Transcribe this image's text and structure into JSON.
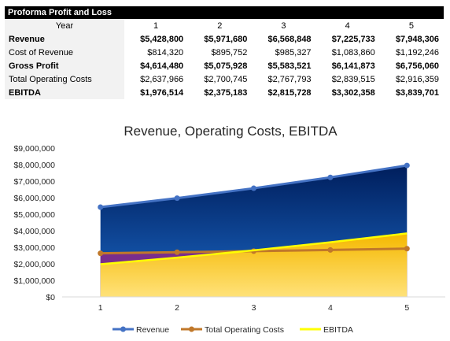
{
  "table": {
    "title": "Proforma Profit and Loss",
    "header_label": "Year",
    "years": [
      "1",
      "2",
      "3",
      "4",
      "5"
    ],
    "rows": [
      {
        "label": "Revenue",
        "bold": true,
        "values": [
          "$5,428,800",
          "$5,971,680",
          "$6,568,848",
          "$7,225,733",
          "$7,948,306"
        ]
      },
      {
        "label": "Cost of Revenue",
        "bold": false,
        "values": [
          "$814,320",
          "$895,752",
          "$985,327",
          "$1,083,860",
          "$1,192,246"
        ]
      },
      {
        "label": "Gross Profit",
        "bold": true,
        "values": [
          "$4,614,480",
          "$5,075,928",
          "$5,583,521",
          "$6,141,873",
          "$6,756,060"
        ]
      },
      {
        "label": "Total Operating Costs",
        "bold": false,
        "values": [
          "$2,637,966",
          "$2,700,745",
          "$2,767,793",
          "$2,839,515",
          "$2,916,359"
        ]
      },
      {
        "label": "EBITDA",
        "bold": true,
        "values": [
          "$1,976,514",
          "$2,375,183",
          "$2,815,728",
          "$3,302,358",
          "$3,839,701"
        ]
      }
    ]
  },
  "chart_data": {
    "type": "area",
    "title": "Revenue, Operating Costs, EBITDA",
    "x": [
      "1",
      "2",
      "3",
      "4",
      "5"
    ],
    "ylim": [
      0,
      9000000
    ],
    "yticks": [
      0,
      1000000,
      2000000,
      3000000,
      4000000,
      5000000,
      6000000,
      7000000,
      8000000,
      9000000
    ],
    "ytick_labels": [
      "$0",
      "$1,000,000",
      "$2,000,000",
      "$3,000,000",
      "$4,000,000",
      "$5,000,000",
      "$6,000,000",
      "$7,000,000",
      "$8,000,000",
      "$9,000,000"
    ],
    "legend_position": "bottom",
    "grid": false,
    "series": [
      {
        "name": "Revenue",
        "values": [
          5428800,
          5971680,
          6568848,
          7225733,
          7948306
        ],
        "line_color": "#4472c4",
        "marker": true
      },
      {
        "name": "Total Operating Costs",
        "values": [
          2637966,
          2700745,
          2767793,
          2839515,
          2916359
        ],
        "line_color": "#c0782a",
        "marker": true
      },
      {
        "name": "EBITDA",
        "values": [
          1976514,
          2375183,
          2815728,
          3302358,
          3839701
        ],
        "line_color": "#ffff00",
        "marker": false
      }
    ],
    "fill_colors": {
      "revenue_top": "#001e5c",
      "revenue_bottom": "#1a66c4",
      "opcost": "#7a2d8c",
      "ebitda_top": "#f5b800",
      "ebitda_bottom": "#ffe27a"
    }
  }
}
